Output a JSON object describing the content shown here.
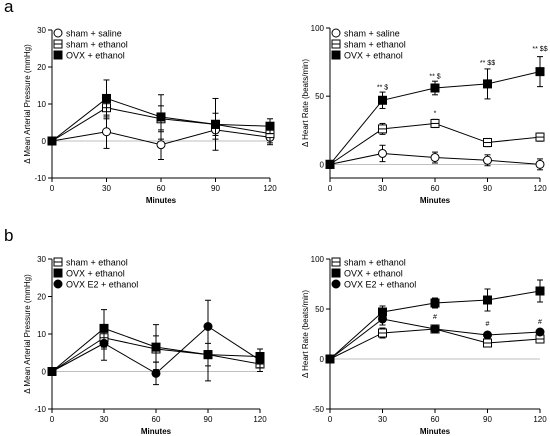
{
  "figure": {
    "panel_a_label": "a",
    "panel_b_label": "b"
  },
  "colors": {
    "ink": "#000000",
    "background": "#ffffff"
  },
  "chart_data": [
    {
      "id": "a1",
      "type": "line",
      "xlabel": "Minutes",
      "ylabel": "Δ Mean Arterial Pressure (mmHg)",
      "x": [
        0,
        30,
        60,
        90,
        120
      ],
      "xlim": [
        0,
        120
      ],
      "ylim": [
        -10,
        30
      ],
      "xticks": [
        0,
        30,
        60,
        90,
        120
      ],
      "yticks": [
        -10,
        0,
        10,
        20,
        30
      ],
      "grid": false,
      "legend_position": "top-left",
      "series": [
        {
          "name": "sham + saline",
          "marker": "circle-open",
          "values": [
            0,
            2.5,
            -1,
            3,
            1
          ],
          "errors": [
            0,
            4.5,
            4,
            2.5,
            2
          ]
        },
        {
          "name": "sham + ethanol",
          "marker": "square-half",
          "values": [
            0,
            9,
            6,
            4.5,
            2
          ],
          "errors": [
            0,
            3,
            3.5,
            3,
            2.5
          ]
        },
        {
          "name": "OVX + ethanol",
          "marker": "square-filled",
          "values": [
            0,
            11.5,
            6.5,
            4.5,
            4
          ],
          "errors": [
            0,
            5,
            6,
            7,
            2
          ]
        }
      ],
      "annotations": []
    },
    {
      "id": "a2",
      "type": "line",
      "xlabel": "Minutes",
      "ylabel": "Δ Heart Rate (beats/min)",
      "x": [
        0,
        30,
        60,
        90,
        120
      ],
      "xlim": [
        0,
        120
      ],
      "ylim": [
        -10,
        100
      ],
      "xticks": [
        0,
        30,
        60,
        90,
        120
      ],
      "yticks": [
        0,
        50,
        100
      ],
      "grid": false,
      "legend_position": "top-left",
      "series": [
        {
          "name": "sham + saline",
          "marker": "circle-open",
          "values": [
            0,
            8,
            5,
            3,
            0
          ],
          "errors": [
            0,
            6,
            4,
            4,
            4
          ]
        },
        {
          "name": "sham + ethanol",
          "marker": "square-half",
          "values": [
            0,
            26,
            30,
            16,
            20
          ],
          "errors": [
            0,
            4,
            3,
            3,
            3
          ]
        },
        {
          "name": "OVX + ethanol",
          "marker": "square-filled",
          "values": [
            0,
            47,
            56,
            59,
            68
          ],
          "errors": [
            0,
            6,
            5,
            11,
            11
          ]
        }
      ],
      "annotations": [
        {
          "x": 30,
          "y": 55,
          "text": "** $"
        },
        {
          "x": 60,
          "y": 63,
          "text": "** $"
        },
        {
          "x": 60,
          "y": 36,
          "text": "*"
        },
        {
          "x": 90,
          "y": 73,
          "text": "** $$"
        },
        {
          "x": 120,
          "y": 83,
          "text": "** $$"
        }
      ]
    },
    {
      "id": "b1",
      "type": "line",
      "xlabel": "Minutes",
      "ylabel": "Δ Mean Arterial Pressure (mmHg)",
      "x": [
        0,
        30,
        60,
        90,
        120
      ],
      "xlim": [
        0,
        120
      ],
      "ylim": [
        -10,
        30
      ],
      "xticks": [
        0,
        30,
        60,
        90,
        120
      ],
      "yticks": [
        -10,
        0,
        10,
        20,
        30
      ],
      "grid": false,
      "legend_position": "top-left",
      "series": [
        {
          "name": "sham + ethanol",
          "marker": "square-half",
          "values": [
            0,
            9,
            6,
            4.5,
            2
          ],
          "errors": [
            0,
            3,
            3.5,
            3,
            2
          ]
        },
        {
          "name": "OVX + ethanol",
          "marker": "square-filled",
          "values": [
            0,
            11.5,
            6.5,
            4.5,
            4
          ],
          "errors": [
            0,
            5,
            6,
            7,
            2
          ]
        },
        {
          "name": "OVX E2 + ethanol",
          "marker": "circle-filled",
          "values": [
            0,
            7.5,
            -0.5,
            12,
            3
          ],
          "errors": [
            0,
            4.5,
            3,
            7,
            2
          ]
        }
      ],
      "annotations": []
    },
    {
      "id": "b2",
      "type": "line",
      "xlabel": "Minutes",
      "ylabel": "Δ Heart Rate (beats/min)",
      "x": [
        0,
        30,
        60,
        90,
        120
      ],
      "xlim": [
        0,
        120
      ],
      "ylim": [
        -50,
        100
      ],
      "xticks": [
        0,
        30,
        60,
        90,
        120
      ],
      "yticks": [
        -50,
        0,
        50,
        100
      ],
      "grid": false,
      "legend_position": "top-left",
      "series": [
        {
          "name": "sham + ethanol",
          "marker": "square-half",
          "values": [
            0,
            26,
            30,
            16,
            20
          ],
          "errors": [
            0,
            5,
            3,
            3,
            3
          ]
        },
        {
          "name": "OVX + ethanol",
          "marker": "square-filled",
          "values": [
            0,
            47,
            56,
            59,
            68
          ],
          "errors": [
            0,
            6,
            5,
            11,
            11
          ]
        },
        {
          "name": "OVX E2 + ethanol",
          "marker": "circle-filled",
          "values": [
            0,
            40,
            30,
            24,
            27
          ],
          "errors": [
            0,
            6,
            3,
            3,
            3
          ]
        }
      ],
      "annotations": [
        {
          "x": 60,
          "y": 40,
          "text": "#"
        },
        {
          "x": 90,
          "y": 33,
          "text": "#"
        },
        {
          "x": 120,
          "y": 35,
          "text": "#"
        }
      ]
    }
  ]
}
